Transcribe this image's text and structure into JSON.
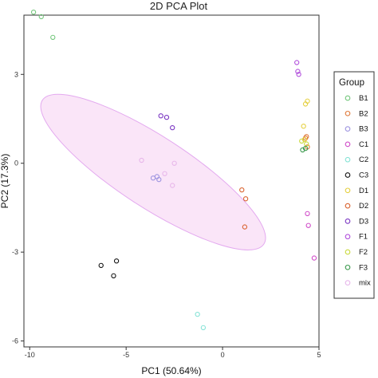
{
  "chart_data": {
    "type": "scatter",
    "title": "2D PCA Plot",
    "xlabel": "PC1 (50.64%)",
    "ylabel": "PC2 (17.3%)",
    "xlim": [
      -10.3,
      5.0
    ],
    "ylim": [
      -6.2,
      5.0
    ],
    "x_ticks": [
      -10,
      -5,
      0,
      5
    ],
    "y_ticks": [
      -6,
      -3,
      0,
      3
    ],
    "grid": false,
    "legend": {
      "title": "Group",
      "placement": "right"
    },
    "ellipse": {
      "group": "mix",
      "center": [
        -3.6,
        -0.3
      ],
      "semi_axis_major": 5.4,
      "semi_axis_minor": 1.45,
      "angle_deg": -33,
      "fill": "#f8dcf6",
      "stroke": "#e3a9ef"
    },
    "series": [
      {
        "name": "B1",
        "color": "#72c67a",
        "points": [
          [
            -9.8,
            5.1
          ],
          [
            -9.4,
            4.95
          ],
          [
            -8.8,
            4.25
          ]
        ]
      },
      {
        "name": "B2",
        "color": "#e07b3c",
        "points": [
          [
            4.3,
            0.85
          ],
          [
            4.35,
            0.9
          ],
          [
            4.4,
            0.55
          ]
        ]
      },
      {
        "name": "B3",
        "color": "#9d94e0",
        "points": [
          [
            -3.4,
            -0.45
          ],
          [
            -3.6,
            -0.5
          ],
          [
            -3.3,
            -0.55
          ]
        ]
      },
      {
        "name": "C1",
        "color": "#d04ac8",
        "points": [
          [
            4.4,
            -1.7
          ],
          [
            4.45,
            -2.1
          ],
          [
            4.75,
            -3.2
          ]
        ]
      },
      {
        "name": "C2",
        "color": "#86e3d6",
        "points": [
          [
            -1.3,
            -5.1
          ],
          [
            -1.0,
            -5.55
          ]
        ]
      },
      {
        "name": "C3",
        "color": "#111111",
        "points": [
          [
            -6.3,
            -3.45
          ],
          [
            -5.5,
            -3.3
          ],
          [
            -5.65,
            -3.8
          ]
        ]
      },
      {
        "name": "D1",
        "color": "#e5d040",
        "points": [
          [
            4.3,
            2.0
          ],
          [
            4.4,
            2.1
          ],
          [
            4.2,
            1.25
          ],
          [
            4.25,
            0.8
          ]
        ]
      },
      {
        "name": "D2",
        "color": "#d9622e",
        "points": [
          [
            1.0,
            -0.9
          ],
          [
            1.2,
            -1.2
          ],
          [
            1.15,
            -2.15
          ]
        ]
      },
      {
        "name": "D3",
        "color": "#7a35c2",
        "points": [
          [
            -3.2,
            1.6
          ],
          [
            -2.9,
            1.55
          ],
          [
            -2.6,
            1.2
          ]
        ]
      },
      {
        "name": "F1",
        "color": "#b14fdc",
        "points": [
          [
            3.85,
            3.4
          ],
          [
            3.9,
            3.1
          ],
          [
            3.95,
            3.0
          ]
        ]
      },
      {
        "name": "F2",
        "color": "#c9d93a",
        "points": [
          [
            4.1,
            0.75
          ],
          [
            4.35,
            0.65
          ]
        ]
      },
      {
        "name": "F3",
        "color": "#3c9a4e",
        "points": [
          [
            4.15,
            0.45
          ],
          [
            4.3,
            0.5
          ]
        ]
      },
      {
        "name": "mix",
        "color": "#e7b6ea",
        "points": [
          [
            -4.2,
            0.1
          ],
          [
            -3.0,
            -0.35
          ],
          [
            -2.5,
            0.0
          ],
          [
            -2.6,
            -0.75
          ]
        ]
      }
    ]
  }
}
